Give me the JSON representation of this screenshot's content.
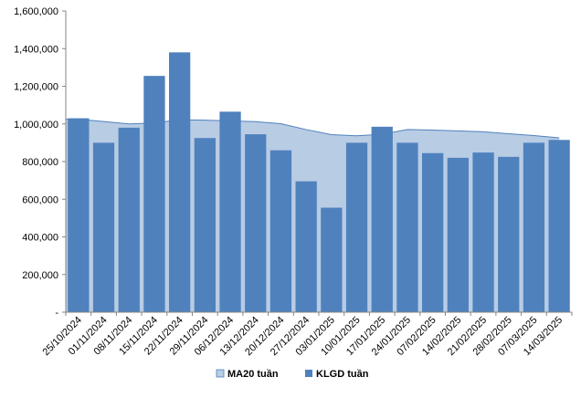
{
  "chart_data": {
    "type": "bar",
    "categories": [
      "25/10/2024",
      "01/11/2024",
      "08/11/2024",
      "15/11/2024",
      "22/11/2024",
      "29/11/2024",
      "06/12/2024",
      "13/12/2024",
      "20/12/2024",
      "27/12/2024",
      "03/01/2025",
      "10/01/2025",
      "17/01/2025",
      "24/01/2025",
      "07/02/2025",
      "14/02/2025",
      "21/02/2025",
      "28/02/2025",
      "07/03/2025",
      "14/03/2025"
    ],
    "series": [
      {
        "name": "MA20 tuần",
        "kind": "area",
        "color": "#b8cce4",
        "edge_color": "#4f81bd",
        "values": [
          1025000,
          1013000,
          1000000,
          1005000,
          1022000,
          1020000,
          1016000,
          1012000,
          1001000,
          970000,
          943000,
          937000,
          945000,
          970000,
          967000,
          963000,
          958000,
          948000,
          938000,
          926000
        ]
      },
      {
        "name": "KLGD tuần",
        "kind": "bar",
        "color": "#4f81bd",
        "values": [
          1030000,
          900000,
          980000,
          1255000,
          1380000,
          925000,
          1065000,
          945000,
          860000,
          695000,
          555000,
          900000,
          985000,
          900000,
          845000,
          820000,
          848000,
          825000,
          900000,
          915000
        ]
      }
    ],
    "y_ticks": [
      "-",
      "200,000",
      "400,000",
      "600,000",
      "800,000",
      "1,000,000",
      "1,200,000",
      "1,400,000",
      "1,600,000"
    ],
    "ylim": [
      0,
      1600000
    ],
    "grid": false,
    "legend_position": "bottom",
    "title": "",
    "xlabel": "",
    "ylabel": ""
  }
}
